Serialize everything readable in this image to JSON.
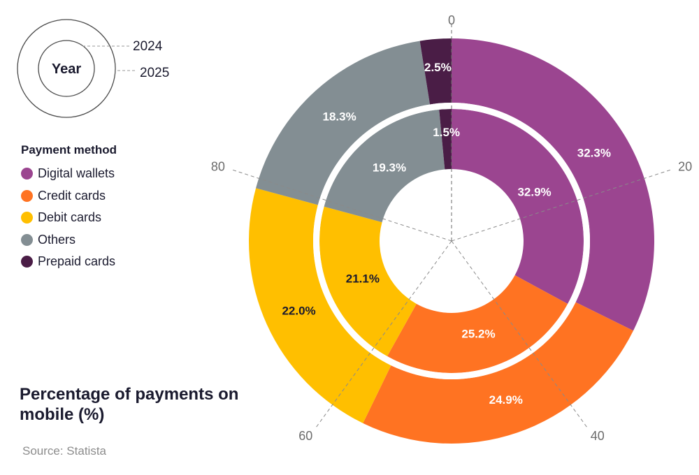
{
  "chart_data": {
    "type": "pie",
    "variant": "nested-donut",
    "title": "Percentage of payments on mobile (%)",
    "source": "Source: Statista",
    "legend_title": "Payment method",
    "categories": [
      "Digital wallets",
      "Credit cards",
      "Debit cards",
      "Others",
      "Prepaid cards"
    ],
    "colors": [
      "#9b4590",
      "#ff7322",
      "#ffbf00",
      "#838e93",
      "#4a1d46"
    ],
    "label_colors": [
      "#ffffff",
      "#ffffff",
      "#1a1a2e",
      "#ffffff",
      "#ffffff"
    ],
    "series": [
      {
        "name": "2024",
        "ring": "outer",
        "values": [
          32.3,
          24.9,
          22.0,
          18.3,
          2.5
        ],
        "labels": [
          "32.3%",
          "24.9%",
          "22.0%",
          "18.3%",
          "2.5%"
        ]
      },
      {
        "name": "2025",
        "ring": "inner",
        "values": [
          32.9,
          25.2,
          21.1,
          19.3,
          1.5
        ],
        "labels": [
          "32.9%",
          "25.2%",
          "21.1%",
          "19.3%",
          "1.5%"
        ]
      }
    ],
    "axis_ticks": [
      {
        "value": 0,
        "label": "0"
      },
      {
        "value": 20,
        "label": "20"
      },
      {
        "value": 40,
        "label": "40"
      },
      {
        "value": 60,
        "label": "60"
      },
      {
        "value": 80,
        "label": "80"
      }
    ],
    "axis_range": [
      0,
      100
    ],
    "year_key": {
      "center_label": "Year",
      "outer_label": "2024",
      "inner_label": "2025"
    }
  }
}
